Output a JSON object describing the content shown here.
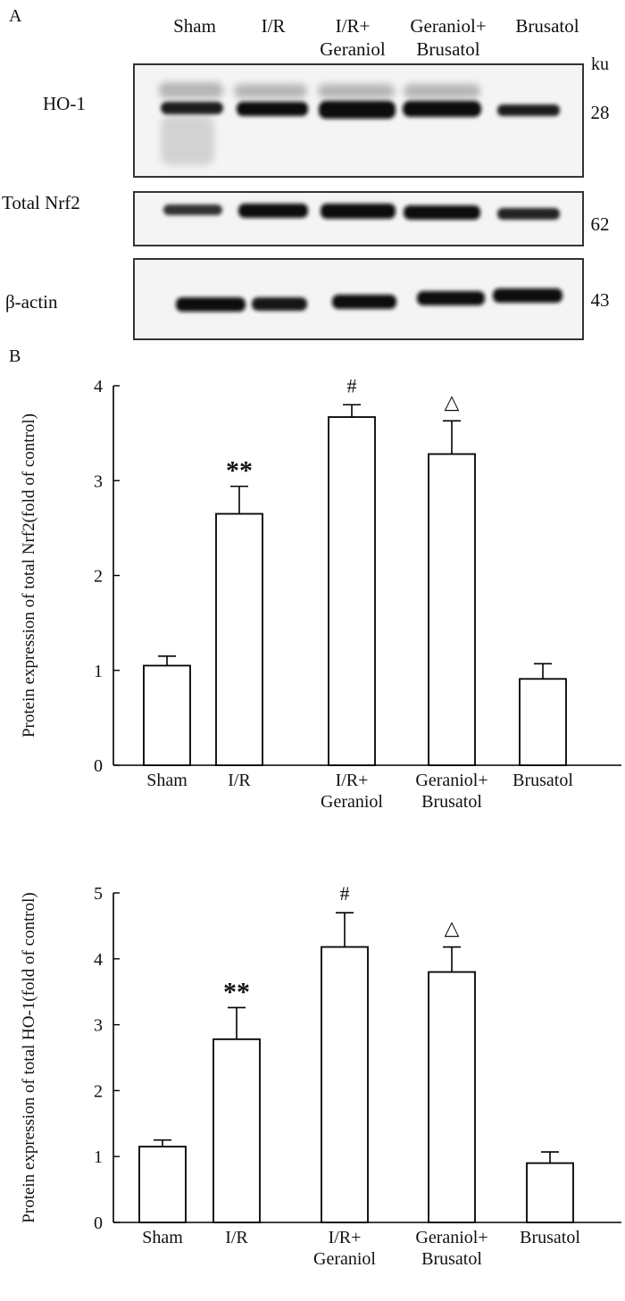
{
  "figure": {
    "panel_a_label": "A",
    "panel_b_label": "B"
  },
  "blot": {
    "lanes": [
      {
        "line1": "Sham",
        "line2": ""
      },
      {
        "line1": "I/R",
        "line2": ""
      },
      {
        "line1": "I/R+",
        "line2": "Geraniol"
      },
      {
        "line1": "Geraniol+",
        "line2": "Brusatol"
      },
      {
        "line1": "Brusatol",
        "line2": ""
      }
    ],
    "unit_label": "ku",
    "rows": [
      {
        "label": "HO-1",
        "weight": "28"
      },
      {
        "label": "Total Nrf2",
        "weight": "62"
      },
      {
        "label": "β-actin",
        "weight": "43"
      }
    ]
  },
  "chart_data": [
    {
      "type": "bar",
      "categories": [
        "Sham",
        "I/R",
        "I/R+\nGeraniol",
        "Geraniol+\nBrusatol",
        "Brusatol"
      ],
      "values": [
        1.05,
        2.65,
        3.67,
        3.28,
        0.91
      ],
      "errors": [
        0.1,
        0.29,
        0.13,
        0.35,
        0.16
      ],
      "annotations": [
        "",
        "**",
        "#",
        "△",
        ""
      ],
      "ylabel": "Protein expression of total Nrf2(fold of control)",
      "xlabel": "",
      "title": "",
      "ylim": [
        0,
        4
      ],
      "yticks": [
        0,
        1,
        2,
        3,
        4
      ],
      "bar_color": "#ffffff",
      "edge_color": "#000000"
    },
    {
      "type": "bar",
      "categories": [
        "Sham",
        "I/R",
        "I/R+\nGeraniol",
        "Geraniol+\nBrusatol",
        "Brusatol"
      ],
      "values": [
        1.15,
        2.78,
        4.18,
        3.8,
        0.9
      ],
      "errors": [
        0.1,
        0.48,
        0.52,
        0.38,
        0.17
      ],
      "annotations": [
        "",
        "**",
        "#",
        "△",
        ""
      ],
      "ylabel": "Protein expression of total HO-1(fold of control)",
      "xlabel": "",
      "title": "",
      "ylim": [
        0,
        5
      ],
      "yticks": [
        0,
        1,
        2,
        3,
        4,
        5
      ],
      "bar_color": "#ffffff",
      "edge_color": "#000000"
    }
  ]
}
